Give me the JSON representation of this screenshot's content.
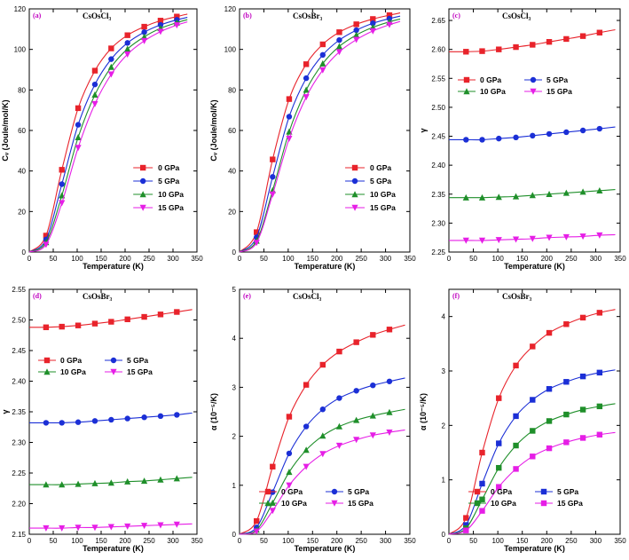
{
  "colors": {
    "s0": "#e8232b",
    "s5": "#1b2fd6",
    "s10": "#1f8f2a",
    "s15": "#e61ee6"
  },
  "chart_data": [
    {
      "type": "line",
      "tag": "(a)",
      "title": "CsOsCl₃",
      "xlabel": "Temperature (K)",
      "ylabel": "Cᵥ (Joule/mol/K)",
      "xlim": [
        0,
        350
      ],
      "ylim": [
        0,
        120
      ],
      "xticks": [
        "0",
        "50",
        "100",
        "150",
        "200",
        "250",
        "300",
        "350"
      ],
      "yticks": [
        "0",
        "20",
        "40",
        "60",
        "80",
        "100",
        "120"
      ],
      "legend_pos": "bottom-right",
      "x": [
        0,
        35,
        68,
        102,
        137,
        171,
        205,
        240,
        274,
        308,
        330
      ],
      "series": [
        {
          "name": "0 GPa",
          "marker": "square",
          "color": "s0",
          "values": [
            0,
            8.1,
            40.6,
            71.0,
            89.5,
            100.5,
            107.0,
            111.2,
            114.2,
            116.2,
            117.4
          ]
        },
        {
          "name": "5 GPa",
          "marker": "circle",
          "color": "s5",
          "values": [
            0,
            6.2,
            33.5,
            62.8,
            82.7,
            95.2,
            103.2,
            108.5,
            112.1,
            114.6,
            115.8
          ]
        },
        {
          "name": "10 GPa",
          "marker": "triangle",
          "color": "s10",
          "values": [
            0,
            4.8,
            27.9,
            56.6,
            77.6,
            91.3,
            100.2,
            106.2,
            110.4,
            113.2,
            114.7
          ]
        },
        {
          "name": "15 GPa",
          "marker": "tri-down",
          "color": "s15",
          "values": [
            0,
            3.7,
            24.2,
            51.5,
            73.1,
            87.7,
            97.6,
            104.2,
            108.8,
            112.0,
            113.6
          ]
        }
      ]
    },
    {
      "type": "line",
      "tag": "(b)",
      "title": "CsOsBr₃",
      "xlabel": "Temperature (K)",
      "ylabel": "Cᵥ (Joule/mol/K)",
      "xlim": [
        0,
        350
      ],
      "ylim": [
        0,
        120
      ],
      "xticks": [
        "0",
        "50",
        "100",
        "150",
        "200",
        "250",
        "300",
        "350"
      ],
      "yticks": [
        "0",
        "20",
        "40",
        "60",
        "80",
        "100",
        "120"
      ],
      "legend_pos": "bottom-right",
      "x": [
        0,
        35,
        68,
        102,
        137,
        171,
        205,
        240,
        274,
        308,
        330
      ],
      "series": [
        {
          "name": "0 GPa",
          "marker": "square",
          "color": "s0",
          "values": [
            0,
            9.8,
            45.7,
            75.5,
            92.7,
            102.5,
            108.5,
            112.4,
            115.0,
            116.9,
            118.0
          ]
        },
        {
          "name": "5 GPa",
          "marker": "circle",
          "color": "s5",
          "values": [
            0,
            7.3,
            37.1,
            66.8,
            85.8,
            97.3,
            104.6,
            109.5,
            112.9,
            115.2,
            116.4
          ]
        },
        {
          "name": "10 GPa",
          "marker": "triangle",
          "color": "s10",
          "values": [
            0,
            5.5,
            30.4,
            59.4,
            80.0,
            93.0,
            101.5,
            107.1,
            110.9,
            113.6,
            115.0
          ]
        },
        {
          "name": "15 GPa",
          "marker": "tri-down",
          "color": "s15",
          "values": [
            0,
            4.6,
            28.5,
            56.0,
            76.5,
            89.8,
            98.8,
            104.8,
            109.1,
            112.2,
            113.8
          ]
        }
      ]
    },
    {
      "type": "line",
      "tag": "(c)",
      "title": "CsOsCl₃",
      "xlabel": "Temperature (K)",
      "ylabel": "γ",
      "xlim": [
        0,
        350
      ],
      "ylim": [
        2.25,
        2.67
      ],
      "yrange_ticks": [
        2.25,
        2.3,
        2.35,
        2.4,
        2.45,
        2.5,
        2.55,
        2.6,
        2.65
      ],
      "xticks": [
        "0",
        "50",
        "100",
        "150",
        "200",
        "250",
        "300",
        "350"
      ],
      "yticks": [
        "2.25",
        "2.30",
        "2.35",
        "2.40",
        "2.45",
        "2.50",
        "2.55",
        "2.60",
        "2.65"
      ],
      "legend_pos": "top-left",
      "x": [
        0,
        35,
        68,
        102,
        137,
        171,
        205,
        240,
        274,
        308,
        340
      ],
      "series": [
        {
          "name": "0 GPa",
          "marker": "square",
          "color": "s0",
          "values": [
            2.596,
            2.596,
            2.597,
            2.6,
            2.604,
            2.608,
            2.613,
            2.618,
            2.623,
            2.629,
            2.634
          ]
        },
        {
          "name": "5 GPa",
          "marker": "circle",
          "color": "s5",
          "values": [
            2.444,
            2.444,
            2.444,
            2.446,
            2.448,
            2.451,
            2.454,
            2.457,
            2.46,
            2.463,
            2.466
          ]
        },
        {
          "name": "10 GPa",
          "marker": "triangle",
          "color": "s10",
          "values": [
            2.344,
            2.344,
            2.344,
            2.345,
            2.346,
            2.348,
            2.35,
            2.352,
            2.354,
            2.356,
            2.358
          ]
        },
        {
          "name": "15 GPa",
          "marker": "tri-down",
          "color": "s15",
          "values": [
            2.27,
            2.27,
            2.27,
            2.271,
            2.272,
            2.273,
            2.275,
            2.276,
            2.277,
            2.279,
            2.28
          ]
        }
      ]
    },
    {
      "type": "line",
      "tag": "(d)",
      "title": "CsOsBr₃",
      "xlabel": "Temperature (K)",
      "ylabel": "γ",
      "xlim": [
        0,
        350
      ],
      "ylim": [
        2.15,
        2.55
      ],
      "xticks": [
        "0",
        "50",
        "100",
        "150",
        "200",
        "250",
        "300",
        "350"
      ],
      "yticks": [
        "2.15",
        "2.20",
        "2.25",
        "2.30",
        "2.35",
        "2.40",
        "2.45",
        "2.50",
        "2.55"
      ],
      "legend_pos": "top-left",
      "x": [
        0,
        35,
        68,
        102,
        137,
        171,
        205,
        240,
        274,
        308,
        340
      ],
      "series": [
        {
          "name": "0 GPa",
          "marker": "square",
          "color": "s0",
          "values": [
            2.488,
            2.488,
            2.489,
            2.491,
            2.494,
            2.497,
            2.501,
            2.505,
            2.509,
            2.513,
            2.517
          ]
        },
        {
          "name": "5 GPa",
          "marker": "circle",
          "color": "s5",
          "values": [
            2.332,
            2.332,
            2.332,
            2.333,
            2.335,
            2.337,
            2.339,
            2.341,
            2.343,
            2.345,
            2.348
          ]
        },
        {
          "name": "10 GPa",
          "marker": "triangle",
          "color": "s10",
          "values": [
            2.231,
            2.231,
            2.231,
            2.232,
            2.233,
            2.234,
            2.236,
            2.237,
            2.239,
            2.241,
            2.243
          ]
        },
        {
          "name": "15 GPa",
          "marker": "tri-down",
          "color": "s15",
          "values": [
            2.16,
            2.16,
            2.16,
            2.161,
            2.161,
            2.162,
            2.163,
            2.164,
            2.165,
            2.166,
            2.167
          ]
        }
      ]
    },
    {
      "type": "line",
      "tag": "(e)",
      "title": "CsOsCl₃",
      "xlabel": "Temperature (K)",
      "ylabel": "α (10⁻⁵/K)",
      "xlim": [
        0,
        350
      ],
      "ylim": [
        0,
        5
      ],
      "xticks": [
        "0",
        "50",
        "100",
        "150",
        "200",
        "250",
        "300",
        "350"
      ],
      "yticks": [
        "0",
        "1",
        "2",
        "3",
        "4",
        "5"
      ],
      "legend_pos": "bottom-center",
      "x": [
        0,
        35,
        68,
        102,
        137,
        171,
        205,
        240,
        274,
        308,
        340
      ],
      "series": [
        {
          "name": "0 GPa",
          "marker": "square",
          "color": "s0",
          "values": [
            0,
            0.27,
            1.38,
            2.4,
            3.05,
            3.46,
            3.73,
            3.92,
            4.07,
            4.18,
            4.27
          ]
        },
        {
          "name": "5 GPa",
          "marker": "circle",
          "color": "s5",
          "values": [
            0,
            0.14,
            0.86,
            1.65,
            2.2,
            2.55,
            2.78,
            2.93,
            3.04,
            3.12,
            3.19
          ]
        },
        {
          "name": "10 GPa",
          "marker": "triangle",
          "color": "s10",
          "values": [
            0,
            0.09,
            0.64,
            1.27,
            1.72,
            2.01,
            2.2,
            2.33,
            2.42,
            2.49,
            2.55
          ]
        },
        {
          "name": "15 GPa",
          "marker": "tri-down",
          "color": "s15",
          "values": [
            0,
            0.06,
            0.48,
            1.0,
            1.38,
            1.64,
            1.81,
            1.93,
            2.02,
            2.08,
            2.13
          ]
        }
      ]
    },
    {
      "type": "line",
      "tag": "(f)",
      "title": "CsOsBr₃",
      "xlabel": "Temperature (K)",
      "ylabel": "α (10⁻⁵/K)",
      "xlim": [
        0,
        350
      ],
      "ylim": [
        0,
        4.5
      ],
      "xticks": [
        "0",
        "50",
        "100",
        "150",
        "200",
        "250",
        "300",
        "350"
      ],
      "yticks": [
        "0",
        "1",
        "2",
        "3",
        "4"
      ],
      "legend_pos": "bottom-center",
      "x": [
        0,
        35,
        68,
        102,
        137,
        171,
        205,
        240,
        274,
        308,
        340
      ],
      "series": [
        {
          "name": "0 GPa",
          "marker": "square",
          "color": "s0",
          "values": [
            0,
            0.3,
            1.5,
            2.5,
            3.1,
            3.45,
            3.7,
            3.86,
            3.98,
            4.07,
            4.13
          ]
        },
        {
          "name": "5 GPa",
          "marker": "square",
          "color": "s5",
          "values": [
            0,
            0.17,
            0.93,
            1.67,
            2.17,
            2.47,
            2.67,
            2.8,
            2.9,
            2.97,
            3.02
          ]
        },
        {
          "name": "10 GPa",
          "marker": "square",
          "color": "s10",
          "values": [
            0,
            0.11,
            0.64,
            1.22,
            1.63,
            1.9,
            2.08,
            2.2,
            2.29,
            2.35,
            2.4
          ]
        },
        {
          "name": "15 GPa",
          "marker": "square",
          "color": "s15",
          "values": [
            0,
            0.07,
            0.43,
            0.87,
            1.2,
            1.43,
            1.58,
            1.69,
            1.77,
            1.83,
            1.87
          ]
        }
      ]
    }
  ]
}
